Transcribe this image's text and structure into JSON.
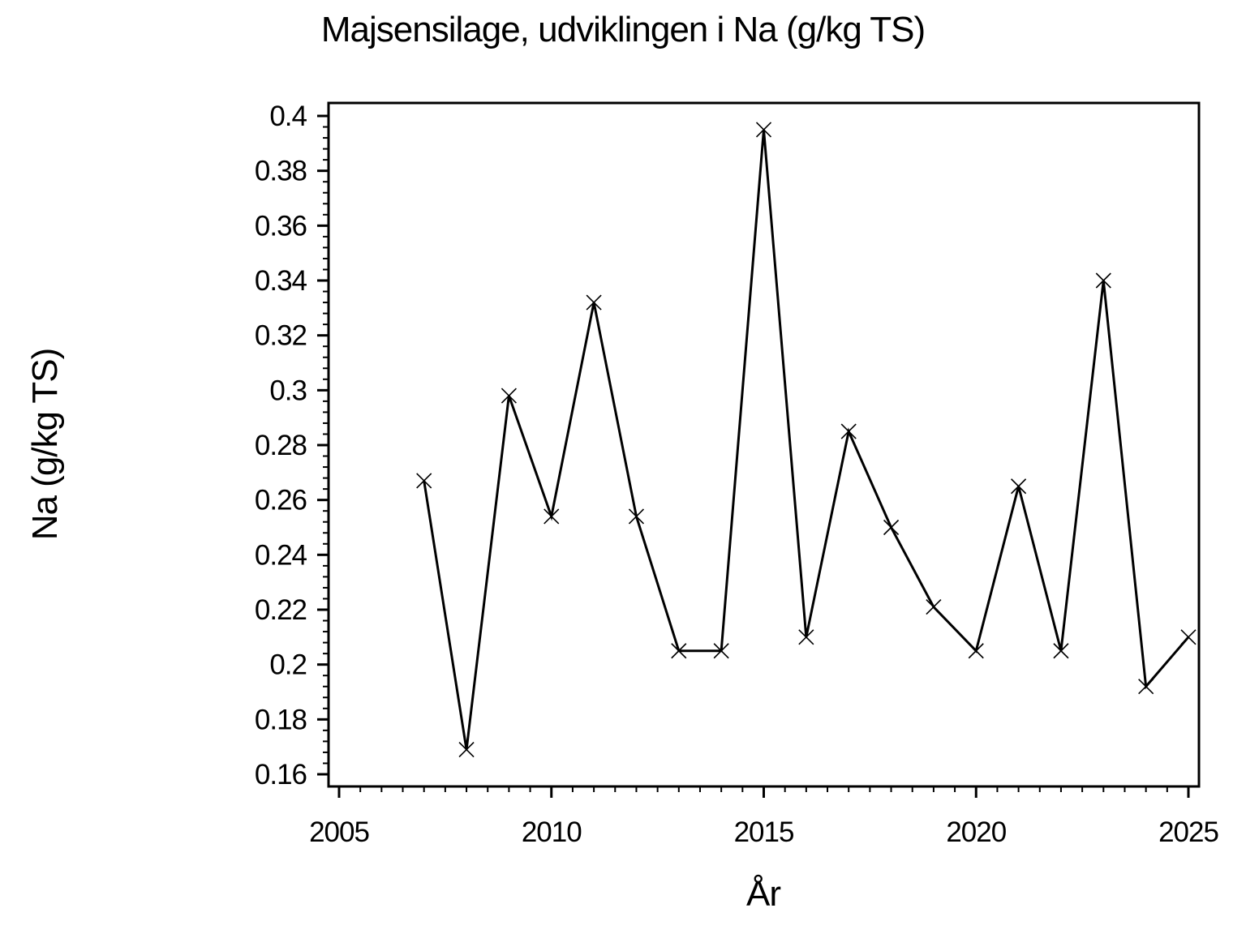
{
  "page": {
    "background": "#ffffff",
    "foreground": "#000000"
  },
  "chart_data": {
    "type": "line",
    "title": "Majsensilage, udviklingen i Na (g/kg TS)",
    "xlabel": "År",
    "ylabel": "Na (g/kg TS)",
    "x": [
      2007,
      2008,
      2009,
      2010,
      2011,
      2012,
      2013,
      2014,
      2015,
      2016,
      2017,
      2018,
      2019,
      2020,
      2021,
      2022,
      2023,
      2024,
      2025
    ],
    "series": [
      {
        "name": "Na (g/kg TS)",
        "values": [
          0.267,
          0.169,
          0.298,
          0.254,
          0.332,
          0.254,
          0.205,
          0.205,
          0.395,
          0.21,
          0.285,
          0.25,
          0.221,
          0.205,
          0.265,
          0.205,
          0.34,
          0.192,
          0.21
        ]
      }
    ],
    "xlim": [
      2005,
      2025
    ],
    "ylim": [
      0.16,
      0.4
    ],
    "x_tick_values": [
      2005,
      2010,
      2015,
      2020,
      2025
    ],
    "x_tick_labels": [
      "2005",
      "2010",
      "2015",
      "2020",
      "2025"
    ],
    "x_minor_step": 0.5,
    "y_tick_values": [
      0.4,
      0.38,
      0.36,
      0.34,
      0.32,
      0.3,
      0.28,
      0.26,
      0.24,
      0.22,
      0.2,
      0.18,
      0.16
    ],
    "y_tick_labels": [
      "0.4",
      "0.38",
      "0.36",
      "0.34",
      "0.32",
      "0.3",
      "0.28",
      "0.26",
      "0.24",
      "0.22",
      "0.2",
      "0.18",
      "0.16"
    ],
    "y_minor_step": 0.004,
    "marker": "x-cross",
    "line_color": "#000000",
    "marker_color": "#000000",
    "grid": false,
    "legend": "none"
  }
}
